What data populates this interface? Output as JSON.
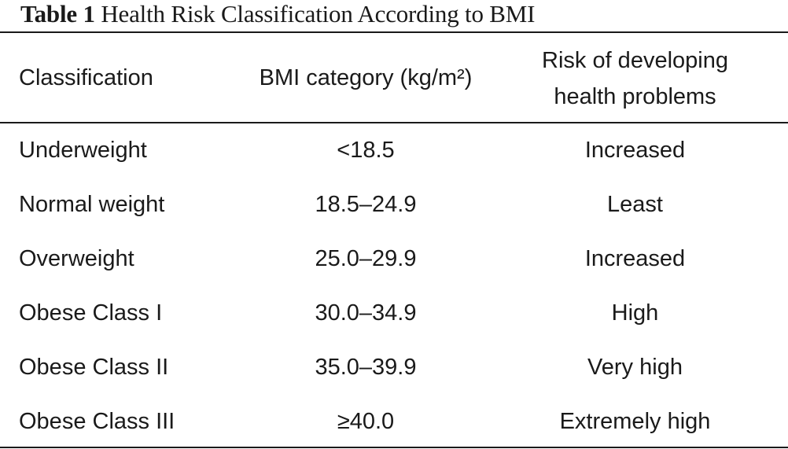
{
  "table": {
    "caption_label": "Table 1",
    "caption_title": "Health Risk Classification According to BMI",
    "headers": {
      "classification": "Classification",
      "bmi": "BMI category (kg/m²)",
      "risk_line1": "Risk of developing",
      "risk_line2": "health problems"
    },
    "rows": [
      {
        "classification": "Underweight",
        "bmi": "<18.5",
        "risk": "Increased"
      },
      {
        "classification": "Normal weight",
        "bmi": "18.5–24.9",
        "risk": "Least"
      },
      {
        "classification": "Overweight",
        "bmi": "25.0–29.9",
        "risk": "Increased"
      },
      {
        "classification": "Obese Class I",
        "bmi": "30.0–34.9",
        "risk": "High"
      },
      {
        "classification": "Obese Class II",
        "bmi": "35.0–39.9",
        "risk": "Very high"
      },
      {
        "classification": "Obese Class III",
        "bmi": "≥40.0",
        "risk": "Extremely high"
      }
    ]
  }
}
